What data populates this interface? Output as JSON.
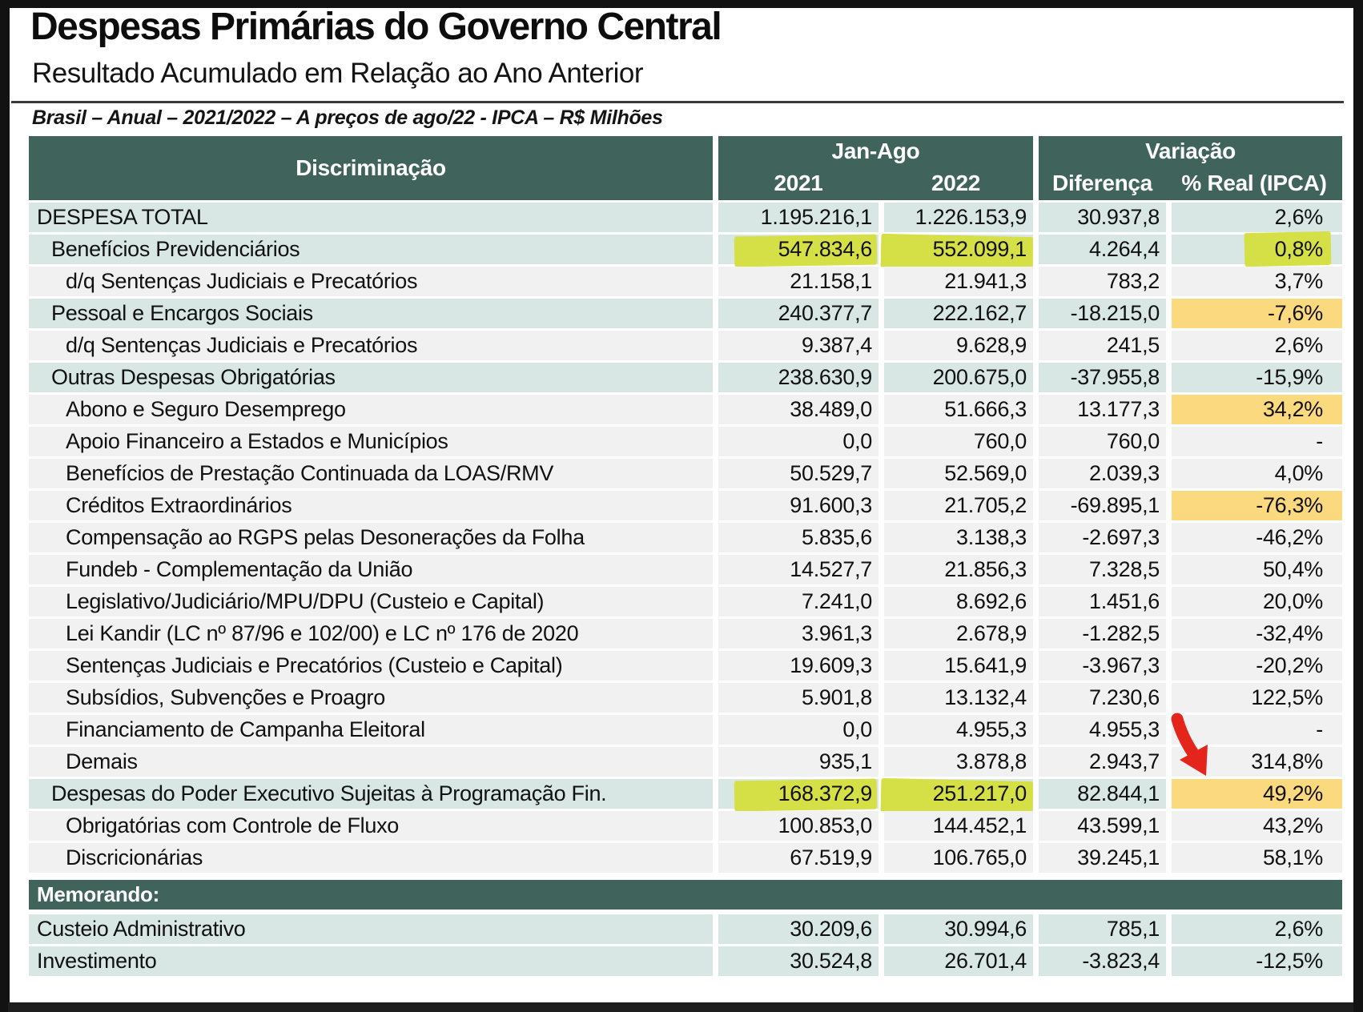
{
  "title": "Despesas Primárias do Governo Central",
  "subtitle": "Resultado Acumulado em Relação ao Ano Anterior",
  "note": "Brasil – Anual – 2021/2022 – A preços de ago/22 - IPCA – R$ Milhões",
  "colors": {
    "header_teal": "#40645B",
    "row_teal": "#D8E7E4",
    "row_gray": "#F0F1F0",
    "orange_highlight": "#FBD97E",
    "marker_highlight": "#D5DF46",
    "arrow_red": "#E3251B"
  },
  "table": {
    "group_headers": {
      "discriminacao": "Discriminação",
      "jan_ago": "Jan-Ago",
      "variacao": "Variação"
    },
    "sub_headers": {
      "y2021": "2021",
      "y2022": "2022",
      "diferenca": "Diferença",
      "real": "% Real (IPCA)"
    },
    "memorando_label": "Memorando:",
    "rows": [
      {
        "label": "DESPESA TOTAL",
        "indent": 0,
        "tone": "teal",
        "v2021": "1.195.216,1",
        "v2022": "1.226.153,9",
        "dif": "30.937,8",
        "pct": "2,6%"
      },
      {
        "label": "Benefícios Previdenciários",
        "indent": 1,
        "tone": "teal",
        "v2021": "547.834,6",
        "v2022": "552.099,1",
        "dif": "4.264,4",
        "pct": "0,8%",
        "hl": {
          "v2021": "marker",
          "v2022": "marker",
          "pct": "marker"
        }
      },
      {
        "label": "d/q Sentenças Judiciais e Precatórios",
        "indent": 2,
        "tone": "gray",
        "v2021": "21.158,1",
        "v2022": "21.941,3",
        "dif": "783,2",
        "pct": "3,7%"
      },
      {
        "label": "Pessoal e Encargos Sociais",
        "indent": 1,
        "tone": "teal",
        "v2021": "240.377,7",
        "v2022": "222.162,7",
        "dif": "-18.215,0",
        "pct": "-7,6%",
        "hl": {
          "pct": "orange"
        }
      },
      {
        "label": "d/q Sentenças Judiciais e Precatórios",
        "indent": 2,
        "tone": "gray",
        "v2021": "9.387,4",
        "v2022": "9.628,9",
        "dif": "241,5",
        "pct": "2,6%"
      },
      {
        "label": "Outras Despesas Obrigatórias",
        "indent": 1,
        "tone": "teal",
        "v2021": "238.630,9",
        "v2022": "200.675,0",
        "dif": "-37.955,8",
        "pct": "-15,9%"
      },
      {
        "label": "Abono e Seguro Desemprego",
        "indent": 2,
        "tone": "gray",
        "v2021": "38.489,0",
        "v2022": "51.666,3",
        "dif": "13.177,3",
        "pct": "34,2%",
        "hl": {
          "pct": "orange"
        }
      },
      {
        "label": "Apoio Financeiro a Estados e Municípios",
        "indent": 2,
        "tone": "gray",
        "v2021": "0,0",
        "v2022": "760,0",
        "dif": "760,0",
        "pct": "-"
      },
      {
        "label": "Benefícios de Prestação Continuada da LOAS/RMV",
        "indent": 2,
        "tone": "gray",
        "v2021": "50.529,7",
        "v2022": "52.569,0",
        "dif": "2.039,3",
        "pct": "4,0%"
      },
      {
        "label": "Créditos Extraordinários",
        "indent": 2,
        "tone": "gray",
        "v2021": "91.600,3",
        "v2022": "21.705,2",
        "dif": "-69.895,1",
        "pct": "-76,3%",
        "hl": {
          "pct": "orange"
        }
      },
      {
        "label": "Compensação ao RGPS pelas Desonerações da Folha",
        "indent": 2,
        "tone": "gray",
        "v2021": "5.835,6",
        "v2022": "3.138,3",
        "dif": "-2.697,3",
        "pct": "-46,2%"
      },
      {
        "label": "Fundeb - Complementação da União",
        "indent": 2,
        "tone": "gray",
        "v2021": "14.527,7",
        "v2022": "21.856,3",
        "dif": "7.328,5",
        "pct": "50,4%"
      },
      {
        "label": "Legislativo/Judiciário/MPU/DPU (Custeio e Capital)",
        "indent": 2,
        "tone": "gray",
        "v2021": "7.241,0",
        "v2022": "8.692,6",
        "dif": "1.451,6",
        "pct": "20,0%"
      },
      {
        "label": "Lei Kandir (LC nº 87/96 e 102/00) e LC nº 176 de 2020",
        "indent": 2,
        "tone": "gray",
        "v2021": "3.961,3",
        "v2022": "2.678,9",
        "dif": "-1.282,5",
        "pct": "-32,4%"
      },
      {
        "label": "Sentenças Judiciais e Precatórios (Custeio e Capital)",
        "indent": 2,
        "tone": "gray",
        "v2021": "19.609,3",
        "v2022": "15.641,9",
        "dif": "-3.967,3",
        "pct": "-20,2%"
      },
      {
        "label": "Subsídios, Subvenções e Proagro",
        "indent": 2,
        "tone": "gray",
        "v2021": "5.901,8",
        "v2022": "13.132,4",
        "dif": "7.230,6",
        "pct": "122,5%"
      },
      {
        "label": "Financiamento de Campanha Eleitoral",
        "indent": 2,
        "tone": "gray",
        "v2021": "0,0",
        "v2022": "4.955,3",
        "dif": "4.955,3",
        "pct": "-"
      },
      {
        "label": "Demais",
        "indent": 2,
        "tone": "gray",
        "v2021": "935,1",
        "v2022": "3.878,8",
        "dif": "2.943,7",
        "pct": "314,8%"
      },
      {
        "label": "Despesas do Poder Executivo Sujeitas à Programação Fin.",
        "indent": 1,
        "tone": "teal",
        "v2021": "168.372,9",
        "v2022": "251.217,0",
        "dif": "82.844,1",
        "pct": "49,2%",
        "hl": {
          "v2021": "marker",
          "v2022": "marker",
          "pct": "orange"
        }
      },
      {
        "label": "Obrigatórias com Controle de Fluxo",
        "indent": 2,
        "tone": "gray",
        "v2021": "100.853,0",
        "v2022": "144.452,1",
        "dif": "43.599,1",
        "pct": "43,2%"
      },
      {
        "label": "Discricionárias",
        "indent": 2,
        "tone": "gray",
        "v2021": "67.519,9",
        "v2022": "106.765,0",
        "dif": "39.245,1",
        "pct": "58,1%"
      }
    ],
    "memo_rows": [
      {
        "label": "Custeio Administrativo",
        "indent": 0,
        "tone": "teal",
        "v2021": "30.209,6",
        "v2022": "30.994,6",
        "dif": "785,1",
        "pct": "2,6%"
      },
      {
        "label": "Investimento",
        "indent": 0,
        "tone": "teal",
        "v2021": "30.524,8",
        "v2022": "26.701,4",
        "dif": "-3.823,4",
        "pct": "-12,5%"
      }
    ]
  }
}
